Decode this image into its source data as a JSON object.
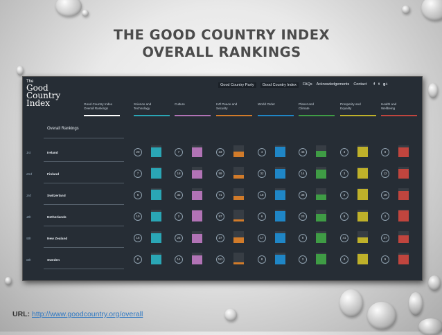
{
  "slide": {
    "title_line1": "THE GOOD COUNTRY INDEX",
    "title_line2": "OVERALL RANKINGS",
    "url_label": "URL:",
    "url": "http://www.goodcountry.org/overall"
  },
  "site": {
    "logo_line1": "The",
    "logo_line2": "Good",
    "logo_line3": "Country",
    "logo_line4": "Index",
    "nav": [
      "Good Country Party",
      "Good Country Index",
      "FAQs",
      "Acknowledgements",
      "Contact"
    ],
    "social": [
      "f",
      "t",
      "g+"
    ],
    "categories": [
      {
        "line1": "Good Country Index",
        "line2": "Overall Rankings",
        "color": "#ffffff"
      },
      {
        "line1": "Science and",
        "line2": "Technology",
        "color": "#2aa6b5"
      },
      {
        "line1": "Culture",
        "line2": "",
        "color": "#b173b5"
      },
      {
        "line1": "Int'l Peace and",
        "line2": "Security",
        "color": "#d17b2a"
      },
      {
        "line1": "World Order",
        "line2": "",
        "color": "#1f86c6"
      },
      {
        "line1": "Planet and",
        "line2": "Climate",
        "color": "#3f9c45"
      },
      {
        "line1": "Prosperity and",
        "line2": "Equality",
        "color": "#bfb12a"
      },
      {
        "line1": "Health and",
        "line2": "Wellbeing",
        "color": "#c0453e"
      }
    ],
    "overall_title": "Overall Rankings",
    "rows": [
      {
        "rank": "1st",
        "country": "Ireland",
        "scores": [
          "20",
          "7",
          "33",
          "4",
          "46",
          "3",
          "8"
        ],
        "levels": [
          0.85,
          0.85,
          0.5,
          0.9,
          0.55,
          0.9,
          0.85
        ]
      },
      {
        "rank": "2nd",
        "country": "Finland",
        "scores": [
          "7",
          "18",
          "59",
          "32",
          "14",
          "3",
          "12"
        ],
        "levels": [
          0.9,
          0.7,
          0.3,
          0.8,
          0.75,
          0.9,
          0.8
        ]
      },
      {
        "rank": "3rd",
        "country": "Switzerland",
        "scores": [
          "6",
          "32",
          "71",
          "18",
          "38",
          "2",
          "18"
        ],
        "levels": [
          0.9,
          0.75,
          0.35,
          0.85,
          0.5,
          0.95,
          0.75
        ]
      },
      {
        "rank": "4th",
        "country": "Netherlands",
        "scores": [
          "10",
          "2",
          "97",
          "6",
          "23",
          "8",
          "2"
        ],
        "levels": [
          0.85,
          0.95,
          0.2,
          0.9,
          0.65,
          0.8,
          0.95
        ]
      },
      {
        "rank": "5th",
        "country": "New Zealand",
        "scores": [
          "15",
          "25",
          "37",
          "17",
          "8",
          "41",
          "27"
        ],
        "levels": [
          0.85,
          0.75,
          0.45,
          0.85,
          0.85,
          0.5,
          0.65
        ]
      },
      {
        "rank": "6th",
        "country": "Sweden",
        "scores": [
          "8",
          "14",
          "111",
          "8",
          "3",
          "4",
          "9"
        ],
        "levels": [
          0.85,
          0.75,
          0.15,
          0.85,
          0.9,
          0.9,
          0.8
        ]
      }
    ]
  }
}
